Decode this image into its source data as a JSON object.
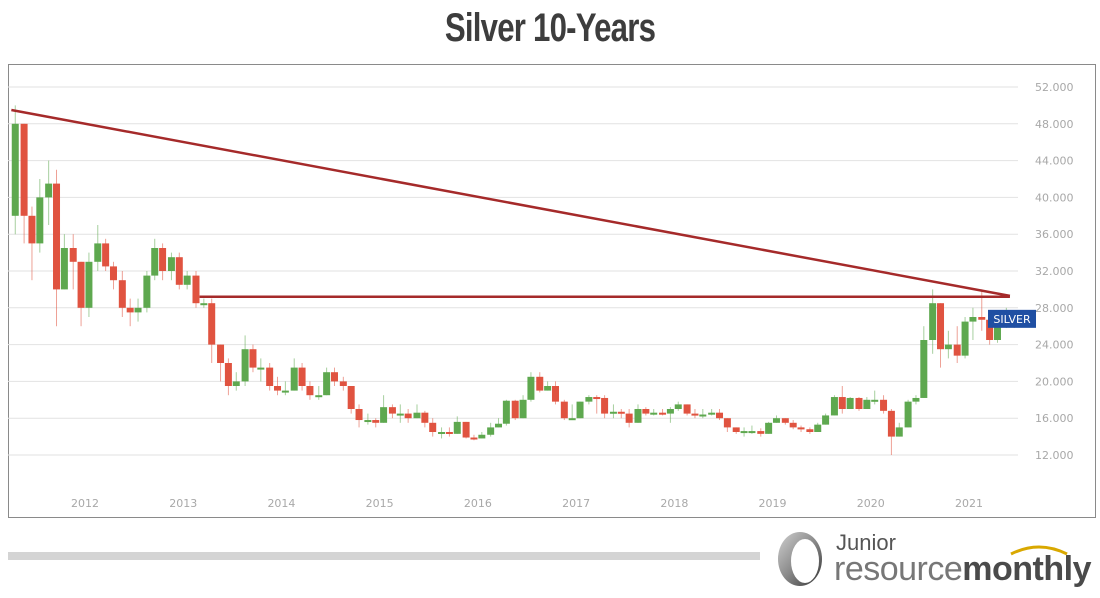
{
  "header": {
    "title": "Silver 10-Years"
  },
  "chart_data": {
    "type": "candlestick",
    "title": "Silver 10-Years",
    "symbol_label": "SILVER",
    "xlabel": "",
    "ylabel": "",
    "ylim": [
      8,
      54
    ],
    "y_ticks": [
      "52.000",
      "48.000",
      "44.000",
      "40.000",
      "36.000",
      "32.000",
      "28.000",
      "24.000",
      "20.000",
      "16.000",
      "12.000"
    ],
    "x_ticks": [
      "2012",
      "2013",
      "2014",
      "2015",
      "2016",
      "2017",
      "2018",
      "2019",
      "2020",
      "2021"
    ],
    "grid": true,
    "annotations": [
      {
        "type": "trendline",
        "label": "descending resistance",
        "from": {
          "date": "2011-04",
          "value": 49.5
        },
        "to": {
          "date": "2021-06",
          "value": 29.3
        },
        "color": "#a52a2a"
      },
      {
        "type": "horizontal",
        "label": "horizontal resistance",
        "from": {
          "date": "2013-03",
          "value": 29.2
        },
        "to": {
          "date": "2021-06",
          "value": 29.2
        },
        "color": "#a52a2a"
      }
    ],
    "colors": {
      "up": "#5ea84f",
      "down": "#e05340",
      "trendline": "#a52a2a",
      "label_bg": "#1f4fa3"
    },
    "candles": [
      [
        2011.29,
        38,
        48,
        36,
        50
      ],
      [
        2011.38,
        48,
        38,
        35,
        48
      ],
      [
        2011.46,
        38,
        35,
        31,
        39
      ],
      [
        2011.54,
        35,
        40,
        34,
        42
      ],
      [
        2011.63,
        40,
        41.5,
        37,
        44
      ],
      [
        2011.71,
        41.5,
        30,
        26,
        43
      ],
      [
        2011.79,
        30,
        34.5,
        30,
        36
      ],
      [
        2011.88,
        34.5,
        33,
        30,
        36
      ],
      [
        2011.96,
        33,
        28,
        26,
        33
      ],
      [
        2012.04,
        28,
        33,
        27,
        34
      ],
      [
        2012.13,
        33,
        35,
        32,
        37
      ],
      [
        2012.21,
        35,
        32.5,
        32,
        35.5
      ],
      [
        2012.29,
        32.5,
        31,
        30,
        33
      ],
      [
        2012.38,
        31,
        28,
        27,
        32
      ],
      [
        2012.46,
        28,
        27.5,
        26,
        29
      ],
      [
        2012.54,
        27.5,
        28,
        26.5,
        29
      ],
      [
        2012.63,
        28,
        31.5,
        27.5,
        32
      ],
      [
        2012.71,
        31.5,
        34.5,
        31,
        35.5
      ],
      [
        2012.79,
        34.5,
        32,
        31,
        35
      ],
      [
        2012.88,
        32,
        33.5,
        31,
        34
      ],
      [
        2012.96,
        33.5,
        30.5,
        30,
        34
      ],
      [
        2013.04,
        30.5,
        31.5,
        30,
        32
      ],
      [
        2013.13,
        31.5,
        28.5,
        28,
        32
      ],
      [
        2013.21,
        28.5,
        28.5,
        28,
        29
      ],
      [
        2013.29,
        28.5,
        24,
        22,
        29
      ],
      [
        2013.38,
        24,
        22,
        20,
        24
      ],
      [
        2013.46,
        22,
        19.5,
        18.5,
        22.5
      ],
      [
        2013.54,
        19.5,
        20,
        19,
        21
      ],
      [
        2013.63,
        20,
        23.5,
        19.5,
        25
      ],
      [
        2013.71,
        23.5,
        21.5,
        21,
        24
      ],
      [
        2013.79,
        21.5,
        21.5,
        20,
        22.5
      ],
      [
        2013.88,
        21.5,
        19.5,
        19,
        22
      ],
      [
        2013.96,
        19.5,
        19,
        18.5,
        20.5
      ],
      [
        2014.04,
        19,
        19,
        18.5,
        20
      ],
      [
        2014.13,
        19,
        21.5,
        19,
        22.5
      ],
      [
        2014.21,
        21.5,
        19.5,
        19,
        22
      ],
      [
        2014.29,
        19.5,
        18.5,
        18,
        20
      ],
      [
        2014.38,
        18.5,
        18.5,
        18,
        19.5
      ],
      [
        2014.46,
        18.5,
        21,
        18.5,
        21.5
      ],
      [
        2014.54,
        21,
        20,
        19.5,
        21.5
      ],
      [
        2014.63,
        20,
        19.5,
        19,
        20.5
      ],
      [
        2014.71,
        19.5,
        17,
        16.5,
        19.5
      ],
      [
        2014.79,
        17,
        15.8,
        15,
        17.5
      ],
      [
        2014.88,
        15.8,
        15.8,
        15.3,
        16.5
      ],
      [
        2014.96,
        15.8,
        15.5,
        15,
        16
      ],
      [
        2015.04,
        15.5,
        17.2,
        15.5,
        18.5
      ],
      [
        2015.13,
        17.2,
        16.5,
        16,
        17.5
      ],
      [
        2015.21,
        16.5,
        16.5,
        15.5,
        17.5
      ],
      [
        2015.29,
        16.5,
        16,
        15.5,
        17
      ],
      [
        2015.38,
        16,
        16.6,
        16,
        17.5
      ],
      [
        2015.46,
        16.6,
        15.5,
        15,
        16.8
      ],
      [
        2015.54,
        15.5,
        14.5,
        14,
        16
      ],
      [
        2015.63,
        14.5,
        14.5,
        13.8,
        15
      ],
      [
        2015.71,
        14.5,
        14.3,
        14,
        15
      ],
      [
        2015.79,
        14.3,
        15.6,
        14.3,
        16.2
      ],
      [
        2015.88,
        15.6,
        13.9,
        13.8,
        15.6
      ],
      [
        2015.96,
        13.9,
        13.8,
        13.6,
        14.2
      ],
      [
        2016.04,
        13.8,
        14.2,
        13.8,
        14.5
      ],
      [
        2016.13,
        14.2,
        15,
        14,
        15.5
      ],
      [
        2016.21,
        15,
        15.4,
        15,
        16
      ],
      [
        2016.29,
        15.4,
        17.9,
        15.2,
        18
      ],
      [
        2016.38,
        17.9,
        16,
        15.8,
        18
      ],
      [
        2016.46,
        16,
        18,
        16,
        18.5
      ],
      [
        2016.54,
        18,
        20.5,
        17.8,
        21
      ],
      [
        2016.63,
        20.5,
        19,
        18.8,
        21
      ],
      [
        2016.71,
        19,
        19.5,
        19,
        20
      ],
      [
        2016.79,
        19.5,
        17.8,
        17.5,
        20
      ],
      [
        2016.88,
        17.8,
        16,
        15.8,
        18
      ],
      [
        2016.96,
        16,
        16,
        15.8,
        17.5
      ],
      [
        2017.04,
        16,
        17.8,
        16,
        17.8
      ],
      [
        2017.13,
        17.8,
        18.3,
        17.5,
        18.5
      ],
      [
        2017.21,
        18.3,
        18.2,
        16.5,
        18.5
      ],
      [
        2017.29,
        18.2,
        16.5,
        16,
        18.5
      ],
      [
        2017.38,
        16.5,
        16.7,
        16,
        17.5
      ],
      [
        2017.46,
        16.7,
        16.5,
        16,
        17
      ],
      [
        2017.54,
        16.5,
        15.5,
        15,
        17
      ],
      [
        2017.63,
        15.5,
        17,
        15.5,
        17.5
      ],
      [
        2017.71,
        17,
        16.5,
        16.3,
        17.2
      ],
      [
        2017.79,
        16.5,
        16.6,
        16.3,
        17
      ],
      [
        2017.88,
        16.6,
        16.5,
        16.3,
        17
      ],
      [
        2017.96,
        16.5,
        17,
        15.5,
        17.2
      ],
      [
        2018.04,
        17,
        17.5,
        16.8,
        17.8
      ],
      [
        2018.13,
        17.5,
        16.5,
        16.3,
        17.5
      ],
      [
        2018.21,
        16.5,
        16.3,
        16,
        17
      ],
      [
        2018.29,
        16.3,
        16.4,
        16,
        17
      ],
      [
        2018.38,
        16.4,
        16.6,
        16.3,
        17
      ],
      [
        2018.46,
        16.6,
        16,
        15.8,
        17
      ],
      [
        2018.54,
        16,
        15,
        14.5,
        16
      ],
      [
        2018.63,
        15,
        14.5,
        14.3,
        15
      ],
      [
        2018.71,
        14.5,
        14.6,
        14,
        15
      ],
      [
        2018.79,
        14.6,
        14.6,
        14.3,
        15.2
      ],
      [
        2018.88,
        14.6,
        14.3,
        14,
        14.9
      ],
      [
        2018.96,
        14.3,
        15.5,
        14.3,
        15.6
      ],
      [
        2019.04,
        15.5,
        16,
        15.5,
        16.3
      ],
      [
        2019.13,
        16,
        15.5,
        15.3,
        16
      ],
      [
        2019.21,
        15.5,
        15,
        14.8,
        15.8
      ],
      [
        2019.29,
        15,
        14.8,
        14.5,
        15.2
      ],
      [
        2019.38,
        14.8,
        14.5,
        14.3,
        15
      ],
      [
        2019.46,
        14.5,
        15.3,
        14.5,
        15.5
      ],
      [
        2019.54,
        15.3,
        16.3,
        15.3,
        16.5
      ],
      [
        2019.63,
        16.3,
        18.3,
        16.3,
        18.5
      ],
      [
        2019.71,
        18.3,
        17,
        16.5,
        19.5
      ],
      [
        2019.79,
        17,
        18.2,
        17,
        18.3
      ],
      [
        2019.88,
        18.2,
        17,
        16.8,
        18.3
      ],
      [
        2019.96,
        17,
        18,
        17,
        18.3
      ],
      [
        2020.04,
        18,
        18,
        17.5,
        19
      ],
      [
        2020.13,
        18,
        16.8,
        16.5,
        18.5
      ],
      [
        2020.21,
        16.8,
        14,
        12,
        17
      ],
      [
        2020.29,
        14,
        15,
        14,
        15.5
      ],
      [
        2020.38,
        15,
        17.8,
        15,
        18
      ],
      [
        2020.46,
        17.8,
        18.2,
        17.5,
        18.5
      ],
      [
        2020.54,
        18.2,
        24.5,
        18.2,
        26
      ],
      [
        2020.63,
        24.5,
        28.5,
        23,
        30
      ],
      [
        2020.71,
        28.5,
        23.5,
        21.5,
        28.5
      ],
      [
        2020.79,
        23.5,
        24,
        22.5,
        25.5
      ],
      [
        2020.88,
        24,
        22.8,
        22,
        26
      ],
      [
        2020.96,
        22.8,
        26.5,
        22.5,
        27
      ],
      [
        2021.04,
        26.5,
        27,
        24.5,
        28
      ],
      [
        2021.13,
        27,
        26.7,
        25.5,
        30
      ],
      [
        2021.21,
        26.7,
        24.5,
        24,
        27
      ],
      [
        2021.29,
        24.5,
        26,
        24.2,
        27
      ],
      [
        2021.38,
        26,
        27.2,
        25.8,
        28
      ],
      [
        2021.46,
        27.2,
        26.3,
        25.8,
        27.5
      ]
    ]
  },
  "footer": {
    "logo_top": "Junior",
    "logo_word1": "resource",
    "logo_word2": "monthly"
  }
}
